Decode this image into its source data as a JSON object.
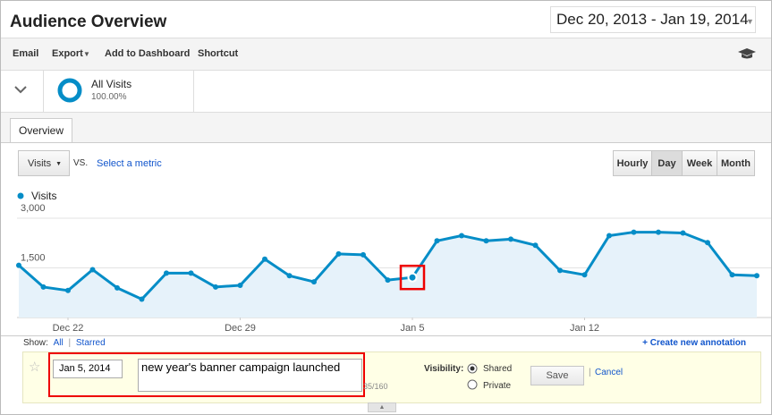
{
  "header": {
    "title": "Audience Overview",
    "date_range": "Dec 20, 2013 - Jan 19, 2014"
  },
  "toolbar": [
    "Email",
    "Export",
    "Add to Dashboard",
    "Shortcut"
  ],
  "segment": {
    "name": "All Visits",
    "percent": "100.00%"
  },
  "tab": "Overview",
  "controls": {
    "metric": "Visits",
    "vs": "VS.",
    "select": "Select a metric",
    "granularity": [
      "Hourly",
      "Day",
      "Week",
      "Month"
    ]
  },
  "annotations": {
    "show": "Show:",
    "all": "All",
    "sep": "|",
    "starred": "Starred",
    "create": "+ Create new annotation",
    "date": "Jan 5, 2014",
    "text": "new year's banner campaign launched",
    "count": "35/160",
    "visibility": "Visibility:",
    "shared": "Shared",
    "private": "Private",
    "save": "Save",
    "cancel_sep": "|",
    "cancel": "Cancel"
  },
  "chart_data": {
    "type": "line",
    "series": [
      {
        "name": "Visits",
        "color": "#058dc7",
        "values": [
          1579,
          921,
          816,
          1447,
          895,
          553,
          1342,
          1342,
          921,
          974,
          1763,
          1263,
          1079,
          1921,
          1895,
          1132,
          1211,
          2316,
          2474,
          2316,
          2368,
          2184,
          1421,
          1289,
          2474,
          2579,
          2579,
          2553,
          2263,
          1289,
          1263
        ]
      }
    ],
    "categories": [
      null,
      null,
      "Dec 22",
      null,
      null,
      null,
      null,
      null,
      null,
      "Dec 29",
      null,
      null,
      null,
      null,
      null,
      null,
      "Jan 5",
      null,
      null,
      null,
      null,
      null,
      null,
      "Jan 12",
      null,
      null,
      null,
      null,
      null,
      null,
      null
    ],
    "ylim": [
      0,
      3000
    ],
    "yticks": [
      {
        "value": 1500,
        "label": "1,500"
      },
      {
        "value": 3000,
        "label": "3,000"
      }
    ],
    "grid": true,
    "area": true,
    "highlight": 16
  }
}
